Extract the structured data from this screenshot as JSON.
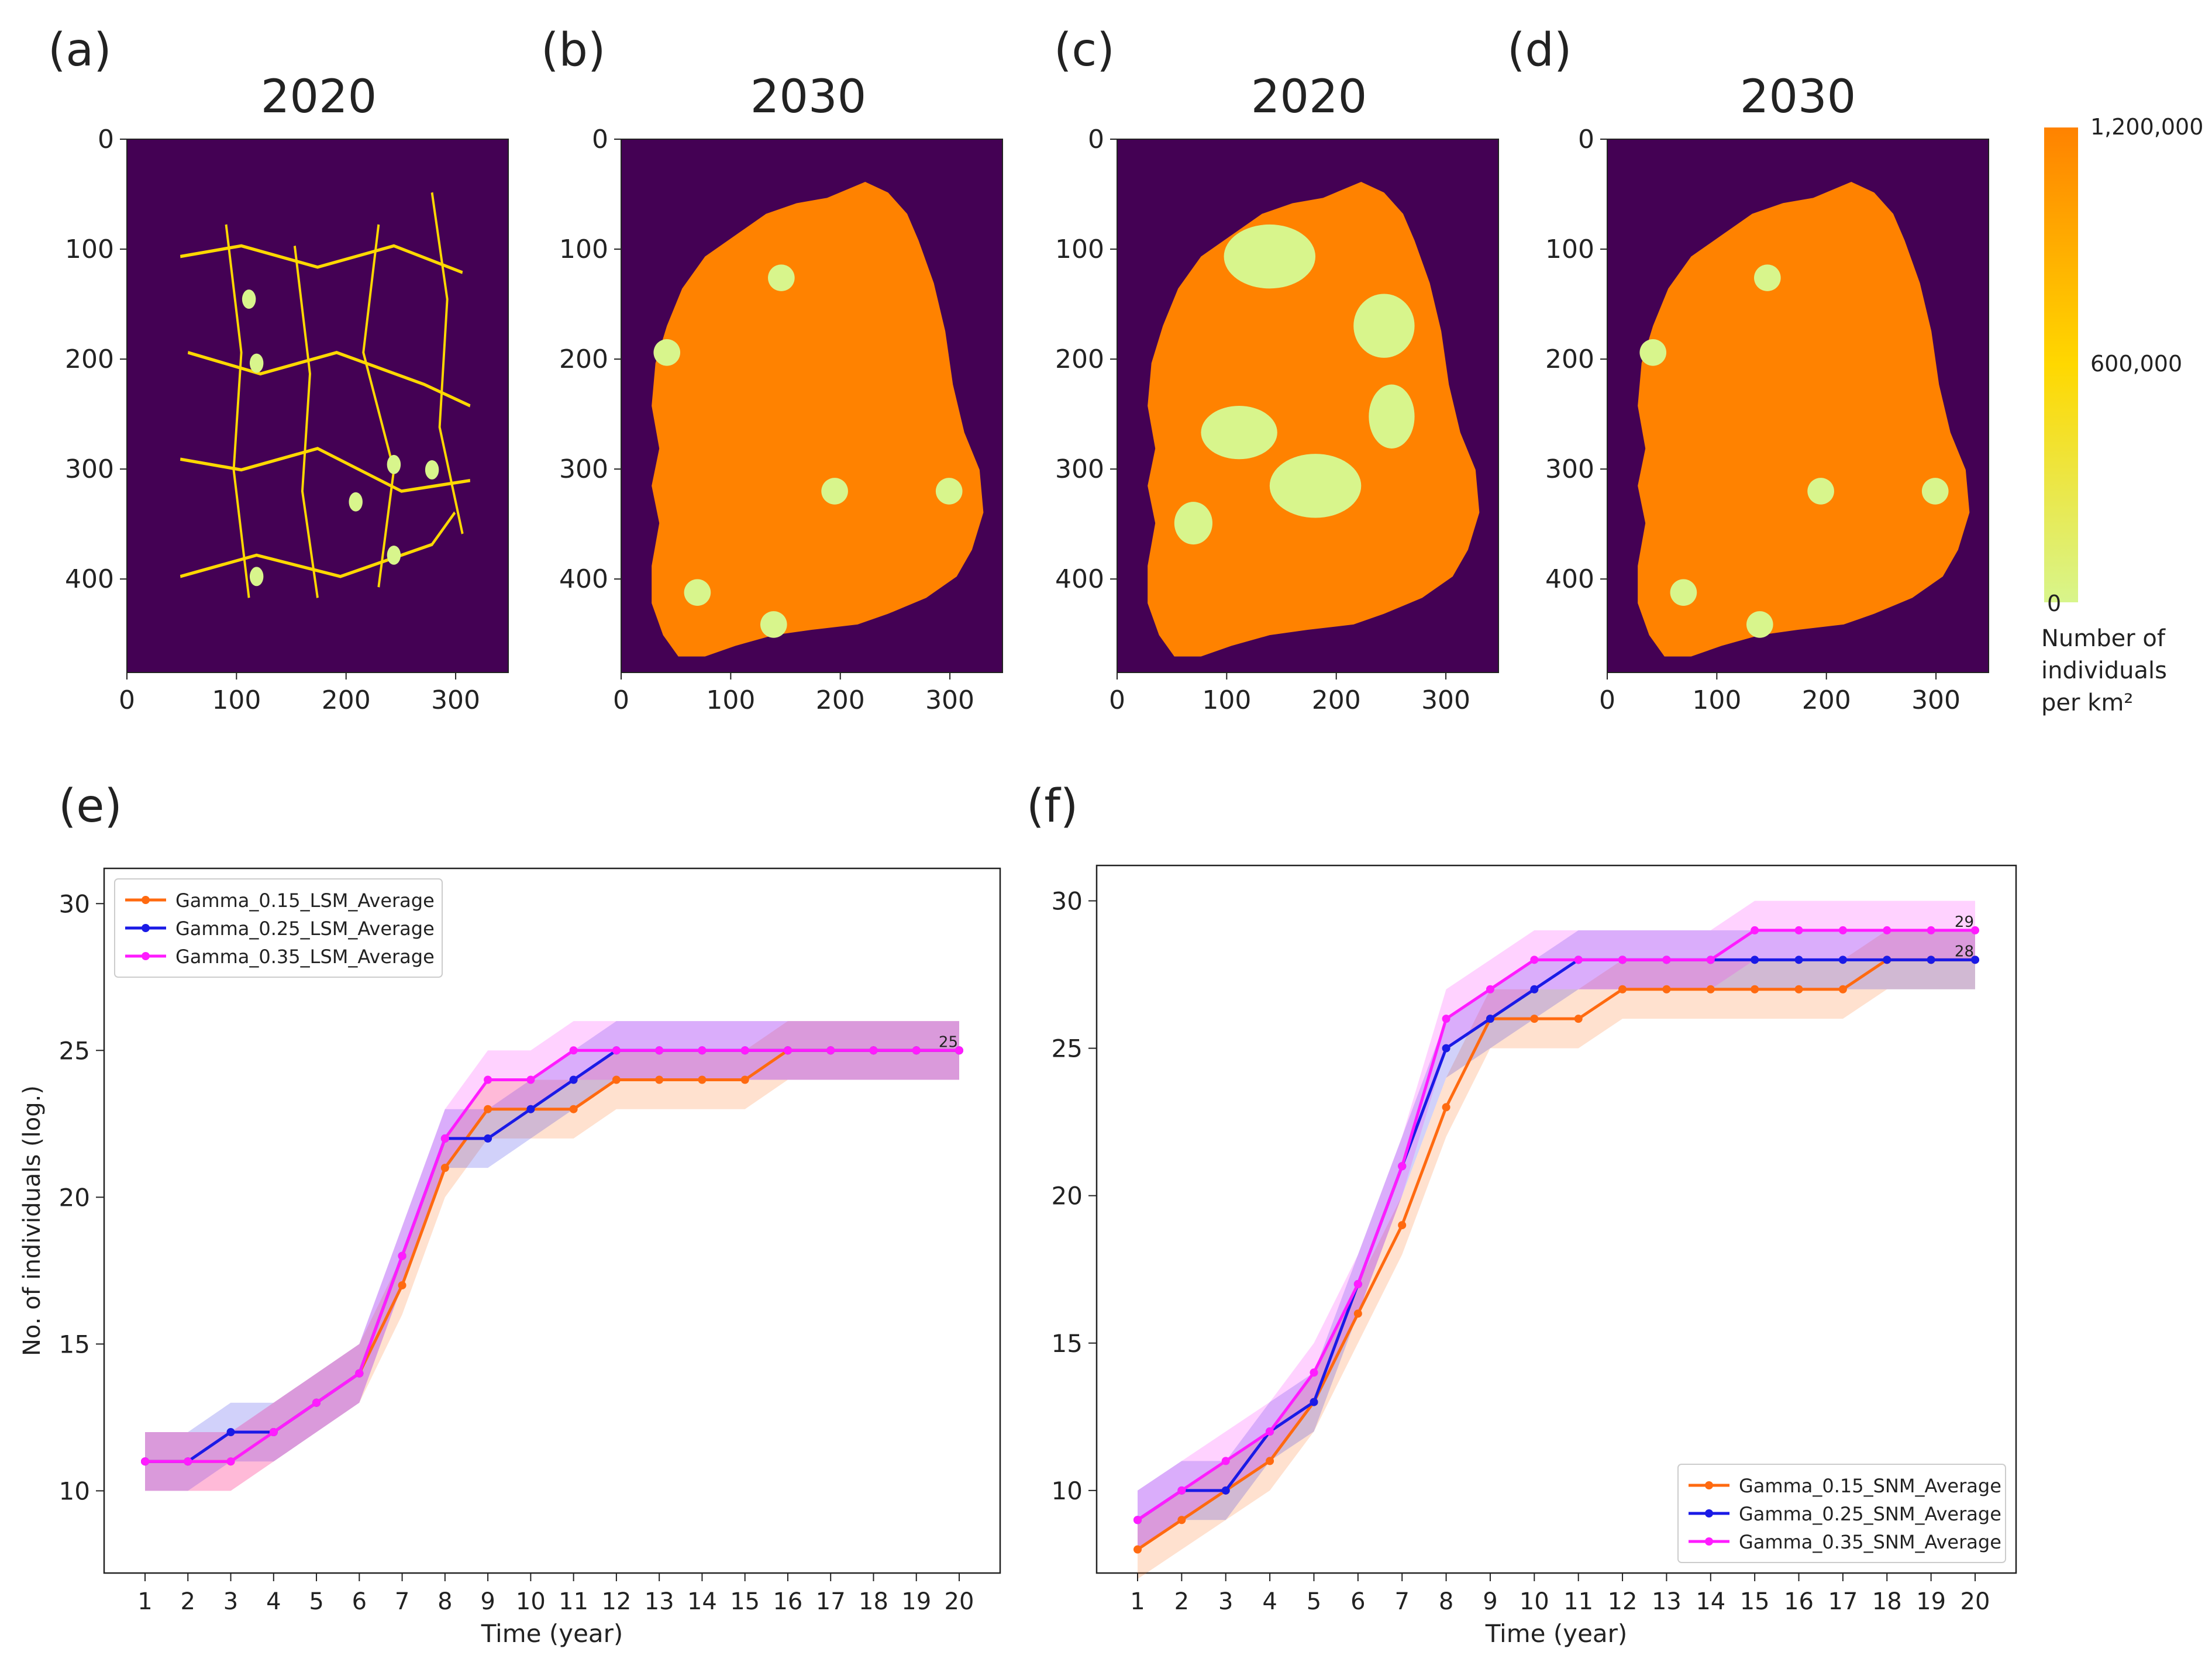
{
  "colorbar": {
    "ticks": [
      "1,200,000",
      "600,000",
      "0"
    ],
    "title_lines": [
      "Number of",
      "individuals",
      "per km²"
    ],
    "color_high": "#ff8200",
    "color_mid": "#ffd800",
    "color_low": "#d8f58c"
  },
  "maps": [
    {
      "letter": "(a)",
      "year": "2020",
      "pattern": "roads"
    },
    {
      "letter": "(b)",
      "year": "2030",
      "pattern": "full"
    },
    {
      "letter": "(c)",
      "year": "2020",
      "pattern": "partial"
    },
    {
      "letter": "(d)",
      "year": "2030",
      "pattern": "full"
    }
  ],
  "map_axes": {
    "xticks": [
      "0",
      "100",
      "200",
      "300"
    ],
    "yticks": [
      "0",
      "100",
      "200",
      "300",
      "400"
    ],
    "background": "#440154"
  },
  "chart_data": [
    {
      "panel": "(e)",
      "type": "line",
      "xlabel": "Time (year)",
      "ylabel": "No. of individuals (log.)",
      "x": [
        1,
        2,
        3,
        4,
        5,
        6,
        7,
        8,
        9,
        10,
        11,
        12,
        13,
        14,
        15,
        16,
        17,
        18,
        19,
        20
      ],
      "ylim": [
        7.2,
        31.2
      ],
      "yticks": [
        10,
        15,
        20,
        25,
        30
      ],
      "legend_position": "top-left",
      "end_label": "25",
      "series": [
        {
          "name": "Gamma_0.15_LSM_Average",
          "color": "#ff6a10",
          "values": [
            11,
            11,
            11,
            12,
            13,
            14,
            17,
            21,
            23,
            23,
            23,
            24,
            24,
            24,
            24,
            25,
            25,
            25,
            25,
            25
          ],
          "band": 1
        },
        {
          "name": "Gamma_0.25_LSM_Average",
          "color": "#1a1ae6",
          "values": [
            11,
            11,
            12,
            12,
            13,
            14,
            18,
            22,
            22,
            23,
            24,
            25,
            25,
            25,
            25,
            25,
            25,
            25,
            25,
            25
          ],
          "band": 1
        },
        {
          "name": "Gamma_0.35_LSM_Average",
          "color": "#ff1cff",
          "values": [
            11,
            11,
            11,
            12,
            13,
            14,
            18,
            22,
            24,
            24,
            25,
            25,
            25,
            25,
            25,
            25,
            25,
            25,
            25,
            25
          ],
          "band": 1
        }
      ]
    },
    {
      "panel": "(f)",
      "type": "line",
      "xlabel": "Time (year)",
      "ylabel": "",
      "x": [
        1,
        2,
        3,
        4,
        5,
        6,
        7,
        8,
        9,
        10,
        11,
        12,
        13,
        14,
        15,
        16,
        17,
        18,
        19,
        20
      ],
      "ylim": [
        7.2,
        31.2
      ],
      "yticks": [
        10,
        15,
        20,
        25,
        30
      ],
      "legend_position": "bottom-right",
      "end_labels": [
        "29",
        "28"
      ],
      "series": [
        {
          "name": "Gamma_0.15_SNM_Average",
          "color": "#ff6a10",
          "values": [
            8,
            9,
            10,
            11,
            13,
            16,
            19,
            23,
            26,
            26,
            26,
            27,
            27,
            27,
            27,
            27,
            27,
            28,
            28,
            28
          ],
          "band": 1
        },
        {
          "name": "Gamma_0.25_SNM_Average",
          "color": "#1a1ae6",
          "values": [
            9,
            10,
            10,
            12,
            13,
            17,
            21,
            25,
            26,
            27,
            28,
            28,
            28,
            28,
            28,
            28,
            28,
            28,
            28,
            28
          ],
          "band": 1
        },
        {
          "name": "Gamma_0.35_SNM_Average",
          "color": "#ff1cff",
          "values": [
            9,
            10,
            11,
            12,
            14,
            17,
            21,
            26,
            27,
            28,
            28,
            28,
            28,
            28,
            29,
            29,
            29,
            29,
            29,
            29
          ],
          "band": 1
        }
      ]
    }
  ],
  "panel_letters": {
    "e": "(e)",
    "f": "(f)"
  }
}
